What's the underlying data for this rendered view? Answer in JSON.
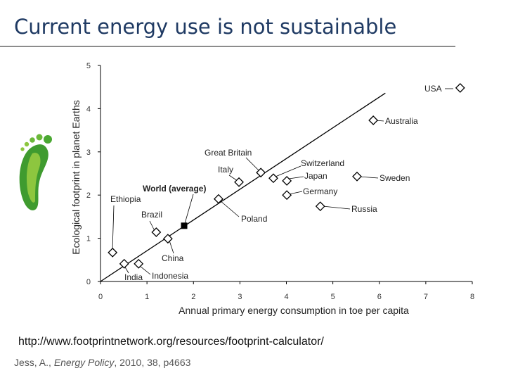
{
  "slide": {
    "title": "Current energy use is not sustainable",
    "url": "http://www.footprintnetwork.org/resources/footprint-calculator/",
    "citation_author": "Jess, A., ",
    "citation_journal": "Energy Policy",
    "citation_rest": ", 2010, 38, p4663"
  },
  "chart_data": {
    "type": "scatter",
    "x_label": "Annual primary energy consumption in toe per capita",
    "y_label": "Ecological footprint in planet Earths",
    "labels": [
      "Ethiopia",
      "India",
      "Indonesia",
      "Brazil",
      "China",
      "World (average)",
      "Poland",
      "Italy",
      "Great Britain",
      "Switzerland",
      "Japan",
      "Germany",
      "Russia",
      "Sweden",
      "Australia",
      "USA"
    ],
    "x": [
      0.26,
      0.51,
      0.82,
      1.2,
      1.45,
      1.8,
      2.54,
      2.98,
      3.45,
      3.72,
      4.01,
      4.01,
      4.73,
      5.52,
      5.87,
      7.74
    ],
    "y": [
      0.67,
      0.41,
      0.41,
      1.14,
      0.99,
      1.29,
      1.91,
      2.3,
      2.52,
      2.39,
      2.33,
      2.0,
      1.74,
      2.43,
      3.73,
      4.48
    ],
    "markers": [
      "diamond",
      "diamond",
      "diamond",
      "diamond",
      "diamond",
      "square",
      "diamond",
      "diamond",
      "diamond",
      "diamond",
      "diamond",
      "diamond",
      "diamond",
      "diamond",
      "diamond",
      "diamond"
    ],
    "color": "#000000",
    "trend_line": {
      "x": [
        0,
        6.13
      ],
      "y": [
        0,
        4.36
      ]
    },
    "xlim": [
      0,
      8
    ],
    "ylim": [
      0,
      5
    ],
    "xticks": [
      0,
      1,
      2,
      3,
      4,
      5,
      6,
      7,
      8
    ],
    "yticks": [
      0,
      1,
      2,
      3,
      4,
      5
    ],
    "grid": false
  }
}
